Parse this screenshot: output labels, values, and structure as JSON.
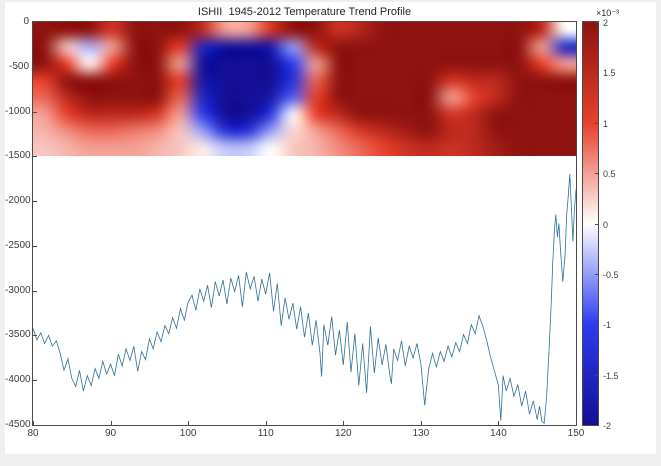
{
  "window": {
    "frame_background": "#efefef",
    "figure_background": "#ffffff",
    "axis_color": "#4a4a4a",
    "tick_label_color": "#3d3d3d"
  },
  "title": "ISHII  1945-2012 Temperature Trend Profile",
  "axes": {
    "x": {
      "min": 80,
      "max": 150,
      "tick_values": [
        80,
        90,
        100,
        110,
        120,
        130,
        140,
        150
      ],
      "tick_labels": [
        "80",
        "90",
        "100",
        "110",
        "120",
        "130",
        "140",
        "150"
      ]
    },
    "y": {
      "min": -4500,
      "max": 0,
      "tick_values": [
        0,
        -500,
        -1000,
        -1500,
        -2000,
        -2500,
        -3000,
        -3500,
        -4000,
        -4500
      ],
      "tick_labels": [
        "0",
        "-500",
        "-1000",
        "-1500",
        "-2000",
        "-2500",
        "-3000",
        "-3500",
        "-4000",
        "-4500"
      ]
    }
  },
  "colorbar": {
    "min": -2,
    "max": 2,
    "exponent_label": "×10⁻³",
    "tick_values": [
      2,
      1.5,
      1,
      0.5,
      0,
      -0.5,
      -1,
      -1.5,
      -2
    ],
    "tick_labels": [
      "2",
      "1.5",
      "1",
      "0.5",
      "0",
      "-0.5",
      "-1",
      "-1.5",
      "-2"
    ]
  },
  "chart_data": [
    {
      "type": "heatmap",
      "title": "ISHII  1945-2012 Temperature Trend Profile",
      "x_range": [
        80,
        150
      ],
      "y_range": [
        -1500,
        0
      ],
      "value_scale": 0.001,
      "colormap": {
        "type": "diverging-blue-white-red",
        "stops": [
          [
            -2,
            "#140f96"
          ],
          [
            -1,
            "#2e3cf0"
          ],
          [
            0,
            "#ffffff"
          ],
          [
            1,
            "#e8402c"
          ],
          [
            2,
            "#8f1310"
          ]
        ]
      },
      "grid": {
        "cols": 24,
        "rows": 8,
        "values": [
          [
            2,
            2,
            2,
            1.2,
            2,
            2,
            2,
            1.5,
            0.5,
            0.5,
            1.2,
            2,
            2,
            1.3,
            1.6,
            2,
            2,
            2,
            2,
            2,
            2,
            2,
            1.5,
            0
          ],
          [
            2,
            0.3,
            -0.4,
            0.5,
            2,
            2,
            1,
            -1.5,
            -2.2,
            -2.2,
            -1.8,
            -0.5,
            1.5,
            2,
            2,
            2,
            2,
            2,
            2,
            2,
            2,
            2,
            0.5,
            -1.5
          ],
          [
            2,
            1,
            0,
            1,
            2,
            2,
            0.5,
            -2,
            -2.5,
            -2.5,
            -2,
            -1,
            0.5,
            2,
            2,
            2,
            2,
            2,
            2,
            2,
            2,
            2,
            1,
            0.5
          ],
          [
            1,
            2,
            2,
            2,
            2,
            2,
            1,
            -1.8,
            -2.5,
            -2.5,
            -2,
            -1.2,
            0.8,
            2,
            2,
            2,
            2,
            2,
            1.2,
            1.5,
            1.5,
            2,
            2,
            2
          ],
          [
            0.8,
            1.5,
            2,
            2,
            2,
            2,
            0.8,
            -1.5,
            -2.3,
            -2.3,
            -1.8,
            -0.8,
            1,
            2,
            2,
            2,
            2,
            2,
            0.5,
            1,
            1.5,
            2,
            2,
            2
          ],
          [
            0.5,
            1,
            1.5,
            1.5,
            1.5,
            1.2,
            0.5,
            -1,
            -2,
            -2,
            -1.2,
            0,
            1,
            1.5,
            2,
            2,
            2,
            2,
            1.2,
            1.5,
            2,
            2,
            2,
            2
          ],
          [
            0.4,
            0.6,
            0.8,
            0.8,
            0.7,
            0.6,
            0.3,
            -0.5,
            -1.3,
            -1.3,
            -0.5,
            0.2,
            0.5,
            0.8,
            1.2,
            1.5,
            1.8,
            2,
            1.5,
            1.5,
            2,
            2,
            2,
            2
          ],
          [
            0.3,
            0.4,
            0.5,
            0.5,
            0.5,
            0.4,
            0.3,
            0.1,
            -0.3,
            -0.3,
            0,
            0.3,
            0.4,
            0.6,
            0.8,
            1,
            1.3,
            1.5,
            1.3,
            1.5,
            1.8,
            2,
            2,
            2
          ]
        ]
      }
    },
    {
      "type": "line",
      "name": "depth-profile",
      "color": "#2e7099",
      "stroke_width": 0.8,
      "points": [
        [
          80,
          -3420
        ],
        [
          80.5,
          -3550
        ],
        [
          81,
          -3470
        ],
        [
          81.5,
          -3590
        ],
        [
          82,
          -3500
        ],
        [
          82.5,
          -3620
        ],
        [
          83,
          -3560
        ],
        [
          83.5,
          -3700
        ],
        [
          84,
          -3890
        ],
        [
          84.5,
          -3760
        ],
        [
          85,
          -3980
        ],
        [
          85.5,
          -4070
        ],
        [
          86,
          -3890
        ],
        [
          86.5,
          -4120
        ],
        [
          87,
          -3950
        ],
        [
          87.5,
          -4060
        ],
        [
          88,
          -3870
        ],
        [
          88.5,
          -3980
        ],
        [
          89,
          -3790
        ],
        [
          89.5,
          -3930
        ],
        [
          90,
          -3820
        ],
        [
          90.5,
          -3950
        ],
        [
          91,
          -3710
        ],
        [
          91.5,
          -3840
        ],
        [
          92,
          -3650
        ],
        [
          92.5,
          -3780
        ],
        [
          93,
          -3620
        ],
        [
          93.5,
          -3900
        ],
        [
          94,
          -3680
        ],
        [
          94.5,
          -3770
        ],
        [
          95,
          -3540
        ],
        [
          95.5,
          -3650
        ],
        [
          96,
          -3460
        ],
        [
          96.5,
          -3570
        ],
        [
          97,
          -3390
        ],
        [
          97.5,
          -3480
        ],
        [
          98,
          -3300
        ],
        [
          98.5,
          -3420
        ],
        [
          99,
          -3200
        ],
        [
          99.5,
          -3330
        ],
        [
          100,
          -3130
        ],
        [
          100.5,
          -3050
        ],
        [
          101,
          -3220
        ],
        [
          101.5,
          -2980
        ],
        [
          102,
          -3120
        ],
        [
          102.5,
          -2940
        ],
        [
          103,
          -3190
        ],
        [
          103.5,
          -2900
        ],
        [
          104,
          -3060
        ],
        [
          104.5,
          -2880
        ],
        [
          105,
          -3150
        ],
        [
          105.5,
          -2860
        ],
        [
          106,
          -3010
        ],
        [
          106.5,
          -2830
        ],
        [
          107,
          -3180
        ],
        [
          107.5,
          -2790
        ],
        [
          108,
          -2980
        ],
        [
          108.5,
          -2840
        ],
        [
          109,
          -3120
        ],
        [
          109.5,
          -2870
        ],
        [
          110,
          -3040
        ],
        [
          110.5,
          -2800
        ],
        [
          111,
          -3230
        ],
        [
          111.5,
          -2920
        ],
        [
          112,
          -3390
        ],
        [
          112.5,
          -3080
        ],
        [
          113,
          -3320
        ],
        [
          113.5,
          -3140
        ],
        [
          114,
          -3430
        ],
        [
          114.5,
          -3180
        ],
        [
          115,
          -3520
        ],
        [
          115.5,
          -3250
        ],
        [
          116,
          -3610
        ],
        [
          116.5,
          -3330
        ],
        [
          117,
          -3700
        ],
        [
          117.2,
          -3960
        ],
        [
          117.5,
          -3380
        ],
        [
          118,
          -3610
        ],
        [
          118.5,
          -3290
        ],
        [
          119,
          -3720
        ],
        [
          119.5,
          -3440
        ],
        [
          120,
          -3830
        ],
        [
          120.5,
          -3350
        ],
        [
          121,
          -3910
        ],
        [
          121.5,
          -3480
        ],
        [
          122,
          -4060
        ],
        [
          122.5,
          -3590
        ],
        [
          123,
          -4140
        ],
        [
          123.5,
          -3400
        ],
        [
          124,
          -3920
        ],
        [
          124.5,
          -3530
        ],
        [
          125,
          -3830
        ],
        [
          125.5,
          -3600
        ],
        [
          126,
          -3940
        ],
        [
          126.2,
          -4040
        ],
        [
          126.5,
          -3650
        ],
        [
          127,
          -3780
        ],
        [
          127.5,
          -3560
        ],
        [
          128,
          -3840
        ],
        [
          128.5,
          -3620
        ],
        [
          129,
          -3750
        ],
        [
          129.5,
          -3590
        ],
        [
          130,
          -3820
        ],
        [
          130.5,
          -4280
        ],
        [
          131,
          -3880
        ],
        [
          131.5,
          -3700
        ],
        [
          132,
          -3850
        ],
        [
          132.5,
          -3680
        ],
        [
          133,
          -3790
        ],
        [
          133.5,
          -3620
        ],
        [
          134,
          -3740
        ],
        [
          134.5,
          -3580
        ],
        [
          135,
          -3680
        ],
        [
          135.5,
          -3490
        ],
        [
          136,
          -3590
        ],
        [
          136.5,
          -3380
        ],
        [
          137,
          -3480
        ],
        [
          137.5,
          -3280
        ],
        [
          138,
          -3400
        ],
        [
          138.5,
          -3560
        ],
        [
          139,
          -3750
        ],
        [
          139.5,
          -3900
        ],
        [
          140,
          -4060
        ],
        [
          140.3,
          -4450
        ],
        [
          140.6,
          -3950
        ],
        [
          141,
          -4120
        ],
        [
          141.5,
          -3980
        ],
        [
          142,
          -4180
        ],
        [
          142.5,
          -4050
        ],
        [
          143,
          -4290
        ],
        [
          143.5,
          -4120
        ],
        [
          144,
          -4380
        ],
        [
          144.5,
          -4230
        ],
        [
          145,
          -4440
        ],
        [
          145.3,
          -4290
        ],
        [
          145.6,
          -4460
        ],
        [
          145.9,
          -4480
        ],
        [
          146.2,
          -4200
        ],
        [
          146.5,
          -3700
        ],
        [
          146.8,
          -3150
        ],
        [
          147,
          -2700
        ],
        [
          147.2,
          -2350
        ],
        [
          147.4,
          -2150
        ],
        [
          147.6,
          -2400
        ],
        [
          147.8,
          -2250
        ],
        [
          148,
          -2550
        ],
        [
          148.3,
          -2900
        ],
        [
          148.6,
          -2600
        ],
        [
          148.8,
          -2150
        ],
        [
          149,
          -1950
        ],
        [
          149.2,
          -1700
        ],
        [
          149.4,
          -2050
        ],
        [
          149.6,
          -2450
        ],
        [
          149.8,
          -2100
        ],
        [
          150,
          -1870
        ]
      ]
    }
  ]
}
